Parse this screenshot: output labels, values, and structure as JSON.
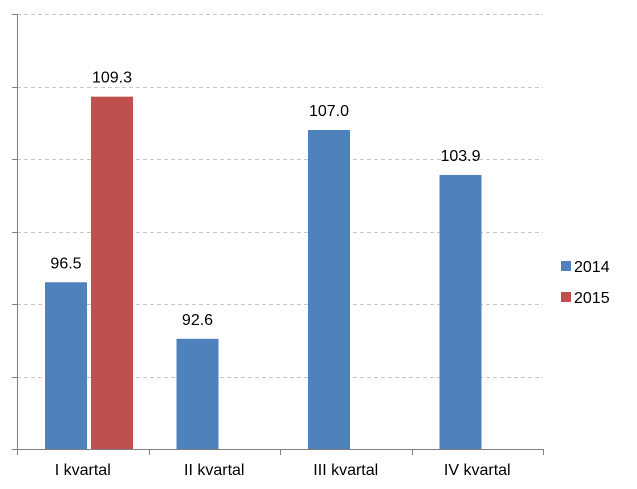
{
  "chart_data": {
    "type": "bar",
    "categories": [
      "I  kvartal",
      "II kvartal",
      "III  kvartal",
      "IV kvartal"
    ],
    "series": [
      {
        "name": "2014",
        "color": "#4F81BD",
        "values": [
          96.5,
          92.6,
          107.0,
          103.9
        ]
      },
      {
        "name": "2015",
        "color": "#C0504D",
        "values": [
          109.3,
          null,
          null,
          null
        ]
      }
    ],
    "value_labels": [
      [
        "96.5",
        "92.6",
        "107.0",
        "103.9"
      ],
      [
        "109.3",
        "",
        "",
        ""
      ]
    ],
    "ylim": [
      85,
      115
    ],
    "y_gridlines": [
      85,
      90,
      95,
      100,
      105,
      110,
      115
    ],
    "grid": true,
    "grid_style": "dashed",
    "y_tick_labels_shown": false,
    "legend_position": "right",
    "title": "",
    "xlabel": "",
    "ylabel": ""
  }
}
